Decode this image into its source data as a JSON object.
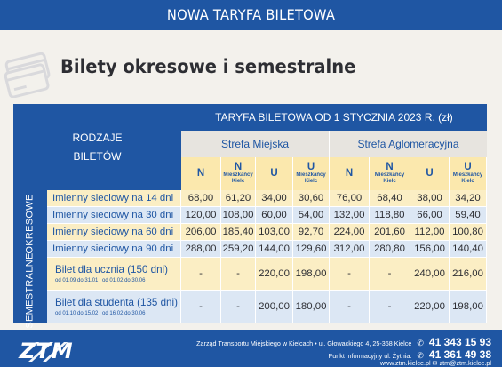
{
  "banner": {
    "title": "NOWA TARYFA BILETOWA"
  },
  "heading": {
    "icon": "tickets-icon",
    "title": "Bilety okresowe i semestralne"
  },
  "table": {
    "rodzaje_line1": "RODZAJE",
    "rodzaje_line2": "BILETÓW",
    "taryfa": "TARYFA BILETOWA OD 1 STYCZNIA 2023 R. (zł)",
    "zone_miejska": "Strefa Miejska",
    "zone_aglo": "Strefa Aglomeracyjna",
    "col_headers": [
      {
        "main": "N",
        "sub": ""
      },
      {
        "main": "N",
        "sub1": "Mieszkańcy",
        "sub2": "Kielc"
      },
      {
        "main": "U",
        "sub": ""
      },
      {
        "main": "U",
        "sub1": "Mieszkańcy",
        "sub2": "Kielc"
      },
      {
        "main": "N",
        "sub": ""
      },
      {
        "main": "N",
        "sub1": "Mieszkańcy",
        "sub2": "Kielc"
      },
      {
        "main": "U",
        "sub": ""
      },
      {
        "main": "U",
        "sub1": "Mieszkańcy",
        "sub2": "Kielc"
      }
    ],
    "group_okresowe": "OKRESOWE",
    "group_semestralne": "SEMESTRALNE",
    "okresowe_rows": [
      {
        "name": "Imienny sieciowy na 14 dni",
        "values": [
          "68,00",
          "61,20",
          "34,00",
          "30,60",
          "76,00",
          "68,40",
          "38,00",
          "34,20"
        ]
      },
      {
        "name": "Imienny sieciowy na 30 dni",
        "values": [
          "120,00",
          "108,00",
          "60,00",
          "54,00",
          "132,00",
          "118,80",
          "66,00",
          "59,40"
        ]
      },
      {
        "name": "Imienny sieciowy na 60 dni",
        "values": [
          "206,00",
          "185,40",
          "103,00",
          "92,70",
          "224,00",
          "201,60",
          "112,00",
          "100,80"
        ]
      },
      {
        "name": "Imienny sieciowy na 90 dni",
        "values": [
          "288,00",
          "259,20",
          "144,00",
          "129,60",
          "312,00",
          "280,80",
          "156,00",
          "140,40"
        ]
      }
    ],
    "semestralne_rows": [
      {
        "name": "Bilet dla ucznia (150 dni)",
        "sub": "od 01.09 do 31.01 i od 01.02 do 30.06",
        "values": [
          "-",
          "-",
          "220,00",
          "198,00",
          "-",
          "-",
          "240,00",
          "216,00"
        ]
      },
      {
        "name": "Bilet dla studenta (135 dni)",
        "sub": "od 01.10 do 15.02 i od 16.02 do 30.06",
        "values": [
          "-",
          "-",
          "200,00",
          "180,00",
          "-",
          "-",
          "220,00",
          "198,00"
        ]
      }
    ]
  },
  "footer": {
    "logo": "ZTM",
    "line1": "Zarząd Transportu Miejskiego w Kielcach  •  ul. Głowackiego 4, 25-368 Kielce",
    "phone1": "41 343 15 93",
    "line2": "Punkt informacyjny ul. Żytnia:",
    "phone2": "41 361 49 38",
    "line3": "www.ztm.kielce.pl   ✉ ztm@ztm.kielce.pl"
  },
  "colors": {
    "brand_blue": "#1f56a3",
    "yellow": "#fbeec4",
    "light_blue": "#dce7f4"
  }
}
